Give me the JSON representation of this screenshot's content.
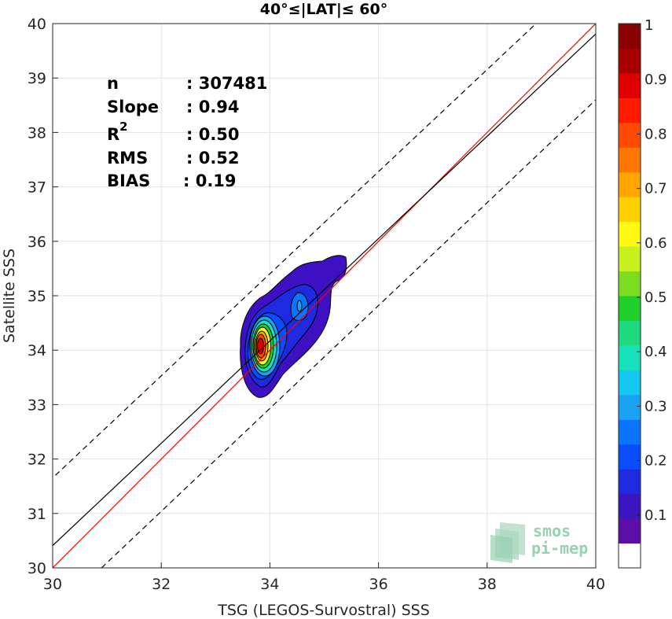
{
  "chart_data": {
    "type": "heatmap",
    "subtype": "density-contour",
    "title": "40°≤|LAT|≤ 60°",
    "xlabel": "TSG (LEGOS-Survostral) SSS",
    "ylabel": "Satellite SSS",
    "xlim": [
      30,
      40
    ],
    "ylim": [
      30,
      40
    ],
    "xticks": [
      30,
      32,
      34,
      36,
      38,
      40
    ],
    "yticks": [
      30,
      31,
      32,
      33,
      34,
      35,
      36,
      37,
      38,
      39,
      40
    ],
    "grid": true,
    "stats": [
      {
        "label": "n",
        "value": ": 307481"
      },
      {
        "label": "Slope",
        "value": ": 0.94"
      },
      {
        "label": "R",
        "sup": "2",
        "value": ": 0.50"
      },
      {
        "label": "RMS",
        "value": ": 0.52"
      },
      {
        "label": "BIAS",
        "value": ": 0.19"
      }
    ],
    "lines": [
      {
        "name": "1:1",
        "color": "#ff0000",
        "style": "solid",
        "x": [
          30,
          40
        ],
        "y": [
          30,
          40
        ]
      },
      {
        "name": "fit",
        "color": "#000000",
        "style": "solid",
        "x": [
          30,
          40
        ],
        "y": [
          30.41,
          39.81
        ]
      },
      {
        "name": "upper",
        "color": "#000000",
        "style": "dashed",
        "x": [
          30.05,
          38.9
        ],
        "y": [
          31.7,
          40
        ]
      },
      {
        "name": "lower",
        "color": "#000000",
        "style": "dashed",
        "x": [
          30.9,
          40
        ],
        "y": [
          30,
          38.6
        ]
      }
    ],
    "density_peaks": [
      {
        "x": 33.85,
        "y": 34.05,
        "level": 1.0
      },
      {
        "x": 34.55,
        "y": 34.8,
        "level": 0.2
      }
    ],
    "colorbar": {
      "range": [
        0,
        1
      ],
      "ticks": [
        0.1,
        0.2,
        0.3,
        0.4,
        0.5,
        0.6,
        0.7,
        0.8,
        0.9,
        1
      ],
      "tick_labels": [
        "0.1",
        "0.2",
        "0.3",
        "0.4",
        "0.5",
        "0.6",
        "0.7",
        "0.8",
        "0.9",
        "1"
      ],
      "colors": [
        "#ffffff",
        "#5b0fa8",
        "#3a16c0",
        "#1d2ae0",
        "#0a4cff",
        "#0c74ff",
        "#1aa2f5",
        "#15c8f0",
        "#18e0bb",
        "#1fd97e",
        "#20d02a",
        "#7cdc20",
        "#c8f01f",
        "#fff815",
        "#ffd000",
        "#ffa600",
        "#ff7600",
        "#ff4a00",
        "#ff1a00",
        "#e00000",
        "#a80000",
        "#8b0000"
      ]
    }
  },
  "watermark": {
    "line1": "smos",
    "line2": "pi-mep"
  }
}
